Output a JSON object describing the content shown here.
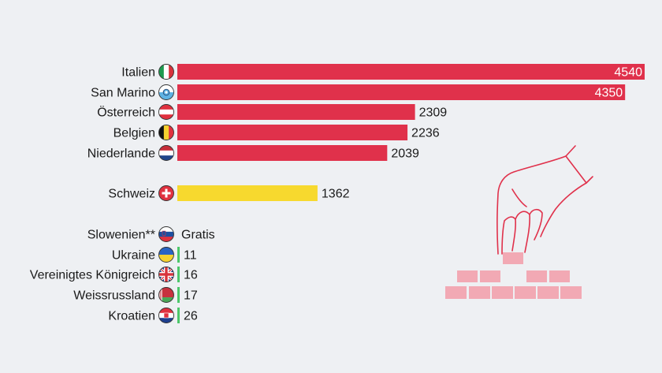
{
  "chart_data": {
    "type": "bar",
    "orientation": "horizontal",
    "categories": [
      "Italien",
      "San Marino",
      "Österreich",
      "Belgien",
      "Niederlande",
      "Schweiz",
      "Slowenien**",
      "Ukraine",
      "Vereinigtes Königreich",
      "Weissrussland",
      "Kroatien"
    ],
    "values": [
      4540,
      4350,
      2309,
      2236,
      2039,
      1362,
      0,
      11,
      16,
      17,
      26
    ],
    "value_labels": [
      "4540",
      "4350",
      "2309",
      "2236",
      "2039",
      "1362",
      "Gratis",
      "11",
      "16",
      "17",
      "26"
    ],
    "groups": [
      0,
      0,
      0,
      0,
      0,
      1,
      2,
      2,
      2,
      2,
      2
    ],
    "bar_colors": [
      "#e0314b",
      "#e0314b",
      "#e0314b",
      "#e0314b",
      "#e0314b",
      "#f7d92e",
      "#4cc76a",
      "#4cc76a",
      "#4cc76a",
      "#4cc76a",
      "#4cc76a"
    ],
    "flag_icons": [
      "flag-italy-icon",
      "flag-san-marino-icon",
      "flag-austria-icon",
      "flag-belgium-icon",
      "flag-netherlands-icon",
      "flag-switzerland-icon",
      "flag-slovenia-icon",
      "flag-ukraine-icon",
      "flag-uk-icon",
      "flag-belarus-icon",
      "flag-croatia-icon"
    ],
    "xlim": [
      0,
      4540
    ],
    "title": "",
    "xlabel": "",
    "ylabel": ""
  },
  "illustration": {
    "icon": "hand-placing-brick-icon",
    "line_color": "#e0314b",
    "brick_color": "#f2a9b4"
  },
  "colors": {
    "background": "#eef0f3",
    "high": "#e0314b",
    "mid": "#f7d92e",
    "low": "#4cc76a"
  }
}
